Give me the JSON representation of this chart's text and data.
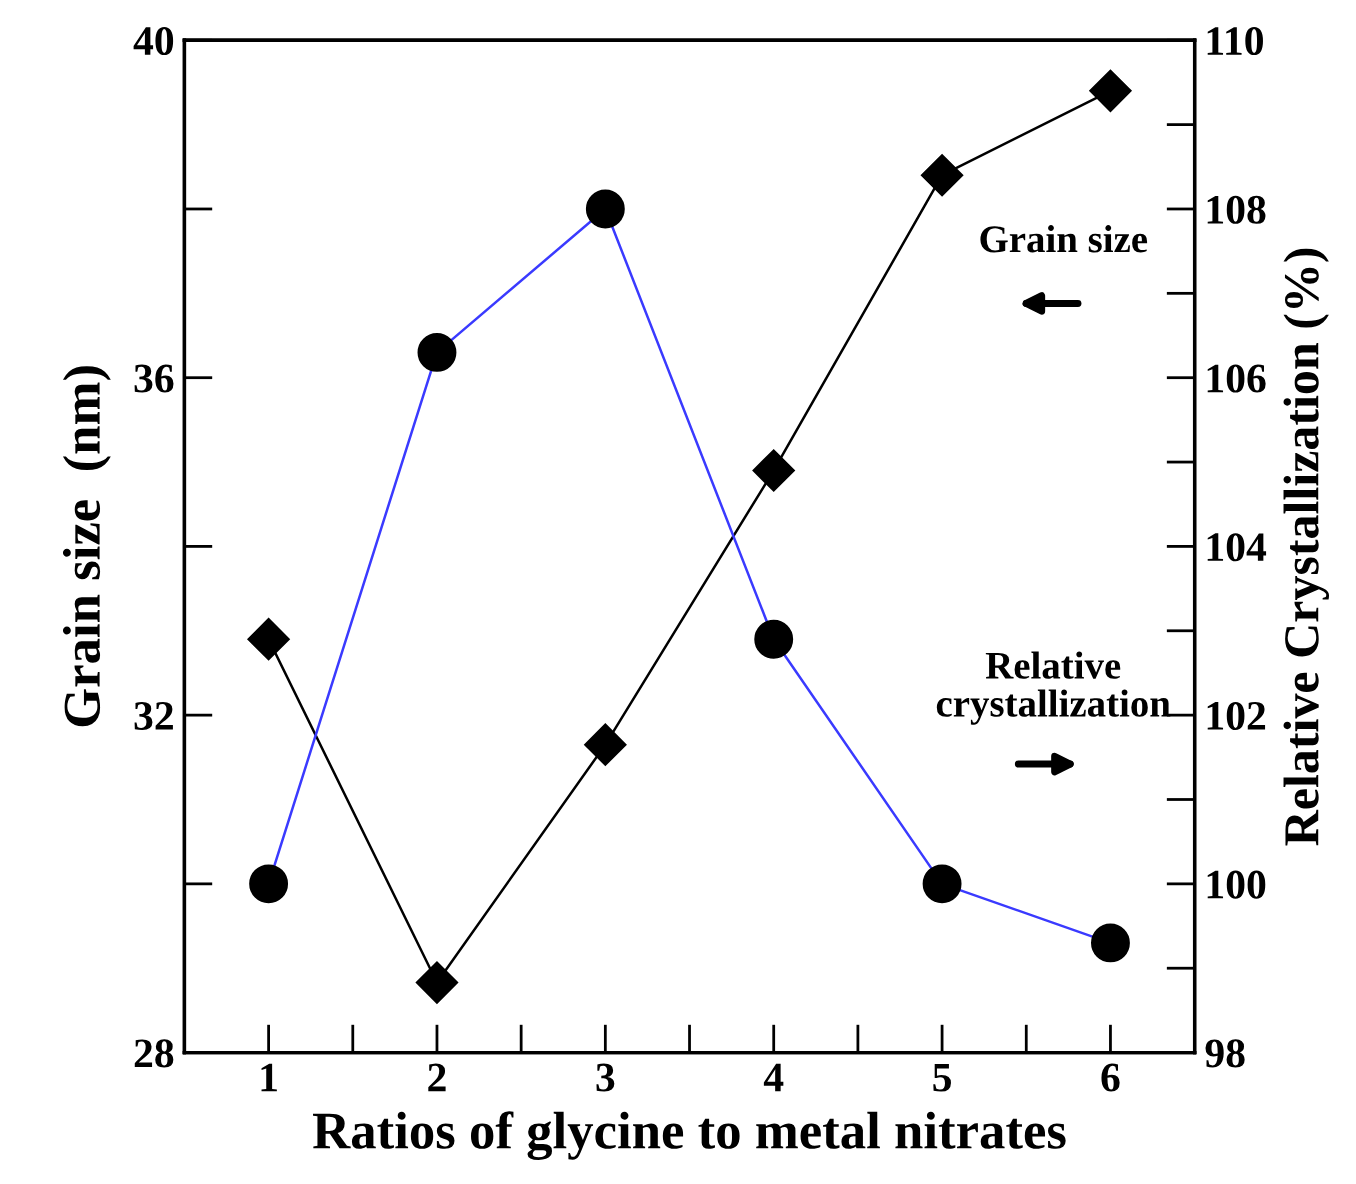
{
  "chart_data": {
    "type": "line",
    "xlabel": "Ratios of glycine to metal nitrates",
    "ylabel": "Grain size  (nm)",
    "y2label": "Relative Crystallization (%)",
    "x": [
      1,
      2,
      3,
      4,
      5,
      6
    ],
    "series": [
      {
        "color": "#000000",
        "marker": "diamond",
        "values": [
          32.9,
          28.83,
          31.65,
          34.9,
          38.4,
          39.4
        ]
      },
      {
        "color": "#3a3aff",
        "marker": "circle",
        "axis": "y2",
        "values": [
          100.0,
          106.3,
          108.0,
          102.9,
          100.0,
          99.3
        ]
      }
    ],
    "xlim": [
      0.5,
      6.5
    ],
    "xticks": [
      1,
      {
        "value": 1.5,
        "label": null
      },
      2,
      {
        "value": 2.5,
        "label": null
      },
      3,
      {
        "value": 3.5,
        "label": null
      },
      4,
      {
        "value": 4.5,
        "label": null
      },
      5,
      {
        "value": 5.5,
        "label": null
      },
      6
    ],
    "ylim": [
      28,
      40
    ],
    "yticks": [
      28,
      {
        "value": 30,
        "label": null
      },
      32,
      {
        "value": 34,
        "label": null
      },
      36,
      {
        "value": 38,
        "label": null
      },
      40
    ],
    "y2lim": [
      98,
      110
    ],
    "y2ticks": [
      98,
      {
        "value": 99,
        "label": null
      },
      100,
      {
        "value": 101,
        "label": null
      },
      102,
      {
        "value": 103,
        "label": null
      },
      104,
      {
        "value": 105,
        "label": null
      },
      106,
      {
        "value": 107,
        "label": null
      },
      108,
      {
        "value": 109,
        "label": null
      },
      110
    ],
    "annotations": [
      "Grain size",
      "Relative\ncrystallization"
    ],
    "grid": false,
    "legend": false
  }
}
